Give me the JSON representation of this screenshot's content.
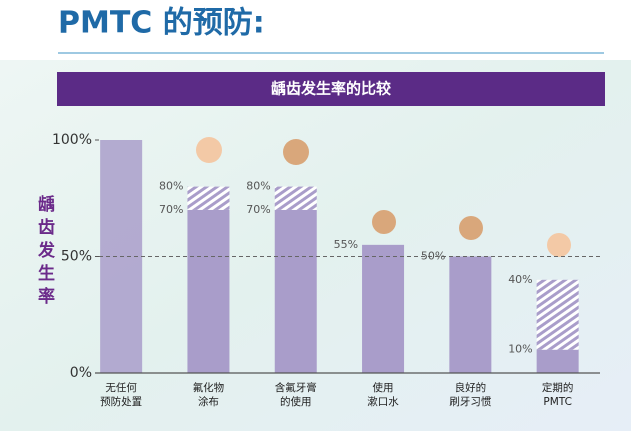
{
  "title": "PMTC 的预防:",
  "chart_data": {
    "type": "range_bar",
    "title": "龋齿发生率的比较",
    "ylabel": "龋齿发生率",
    "categories": [
      [
        "无任何",
        "预防处置"
      ],
      [
        "氟化物",
        "涂布"
      ],
      [
        "含氟牙膏",
        "的使用"
      ],
      [
        "使用",
        "漱口水"
      ],
      [
        "良好的",
        "刷牙习惯"
      ],
      [
        "定期的",
        "PMTC"
      ]
    ],
    "series": [
      {
        "color": "#a99dca",
        "values": [
          100,
          70,
          70,
          55,
          50,
          10
        ],
        "value_labels": [
          null,
          "70%",
          "70%",
          "55%",
          "50%",
          "10%"
        ]
      },
      {
        "color": "#a99dca",
        "hatched": true,
        "values": [
          null,
          80,
          80,
          null,
          null,
          40
        ],
        "value_labels": [
          null,
          "80%",
          "80%",
          null,
          null,
          "40%"
        ]
      }
    ],
    "ylim": [
      0,
      100
    ],
    "yticks": [
      {
        "value": 0,
        "label": "0%"
      },
      {
        "value": 50,
        "label": "50%"
      },
      {
        "value": 100,
        "label": "100%"
      }
    ],
    "reference_line": 50
  }
}
